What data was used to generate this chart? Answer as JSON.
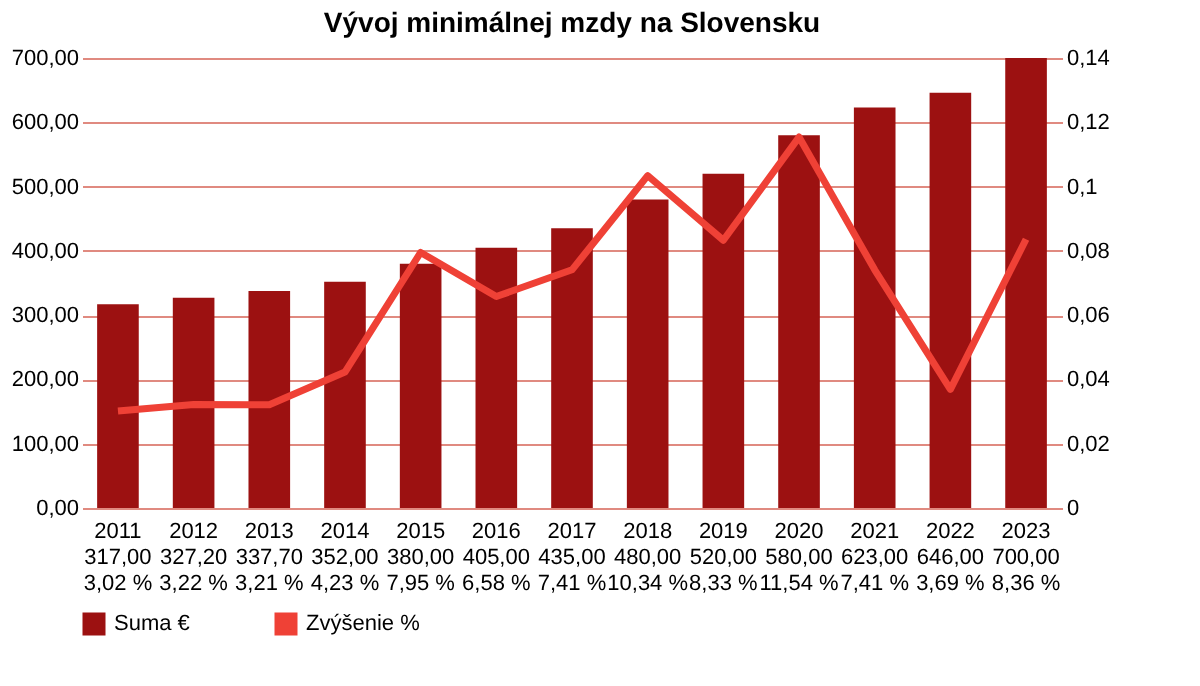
{
  "chart_data": {
    "type": "bar",
    "title": "Vývoj minimálnej mzdy na Slovensku",
    "categories": [
      "2011",
      "2012",
      "2013",
      "2014",
      "2015",
      "2016",
      "2017",
      "2018",
      "2019",
      "2020",
      "2021",
      "2022",
      "2023"
    ],
    "series": [
      {
        "name": "Suma €",
        "color": "#9c1111",
        "values": [
          317,
          327.2,
          337.7,
          352,
          380,
          405,
          435,
          480,
          520,
          580,
          623,
          646,
          700
        ],
        "value_labels": [
          "317,00",
          "327,20",
          "337,70",
          "352,00",
          "380,00",
          "405,00",
          "435,00",
          "480,00",
          "520,00",
          "580,00",
          "623,00",
          "646,00",
          "700,00"
        ]
      },
      {
        "name": "Zvýšenie %",
        "type": "line",
        "axis": "y2",
        "color": "#ef4136",
        "values": [
          0.0302,
          0.0322,
          0.0321,
          0.0423,
          0.0795,
          0.0658,
          0.0741,
          0.1034,
          0.0833,
          0.1154,
          0.0741,
          0.0369,
          0.0836
        ],
        "value_labels": [
          "3,02 %",
          "3,22 %",
          "3,21 %",
          "4,23 %",
          "7,95 %",
          "6,58 %",
          "7,41 %",
          "10,34 %",
          "8,33 %",
          "11,54 %",
          "7,41 %",
          "3,69 %",
          "8,36 %"
        ]
      }
    ],
    "ylim": [
      0,
      700
    ],
    "yticks": [
      {
        "value": 0,
        "label": "0,00"
      },
      {
        "value": 100,
        "label": "100,00"
      },
      {
        "value": 200,
        "label": "200,00"
      },
      {
        "value": 300,
        "label": "300,00"
      },
      {
        "value": 400,
        "label": "400,00"
      },
      {
        "value": 500,
        "label": "500,00"
      },
      {
        "value": 600,
        "label": "600,00"
      },
      {
        "value": 700,
        "label": "700,00"
      }
    ],
    "y2lim": [
      0,
      0.14
    ],
    "y2ticks": [
      {
        "value": 0,
        "label": "0"
      },
      {
        "value": 0.02,
        "label": "0,02"
      },
      {
        "value": 0.04,
        "label": "0,04"
      },
      {
        "value": 0.06,
        "label": "0,06"
      },
      {
        "value": 0.08,
        "label": "0,08"
      },
      {
        "value": 0.1,
        "label": "0,1"
      },
      {
        "value": 0.12,
        "label": "0,12"
      },
      {
        "value": 0.14,
        "label": "0,14"
      }
    ],
    "grid": "y",
    "legend": "bottom",
    "marker": "none",
    "line_style": "solid"
  }
}
